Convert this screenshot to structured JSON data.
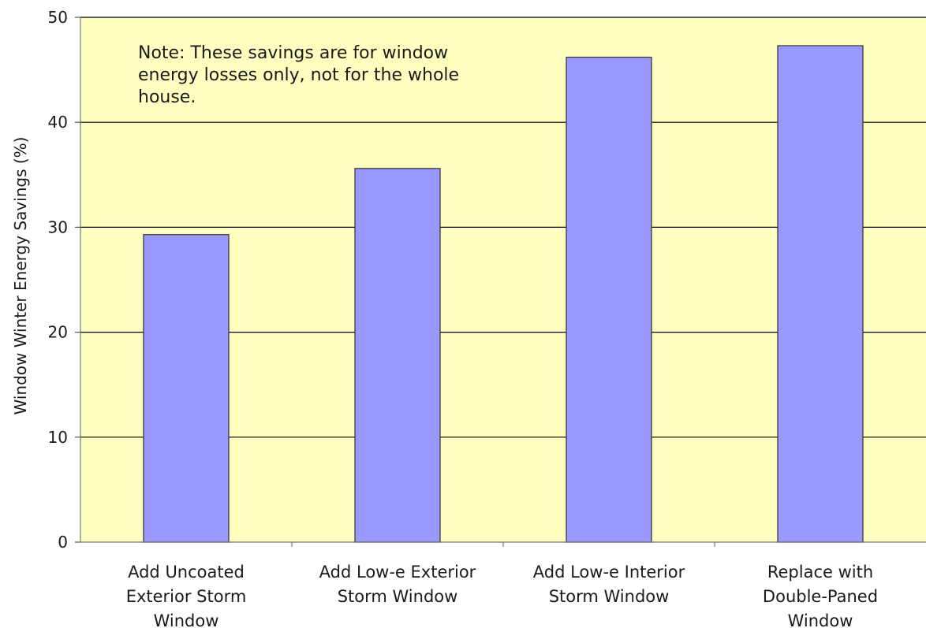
{
  "chart_data": {
    "type": "bar",
    "title": "",
    "xlabel": "",
    "ylabel": "Window Winter Energy Savings (%)",
    "ylim": [
      0,
      50
    ],
    "yticks": [
      0,
      10,
      20,
      30,
      40,
      50
    ],
    "grid": true,
    "categories": [
      [
        "Add Uncoated",
        "Exterior Storm",
        "Window"
      ],
      [
        "Add Low-e Exterior",
        "Storm Window"
      ],
      [
        "Add Low-e Interior",
        "Storm Window"
      ],
      [
        "Replace with",
        "Double-Paned",
        "Window"
      ]
    ],
    "values": [
      29.3,
      35.6,
      46.2,
      47.3
    ],
    "annotation": [
      "Note:  These savings are for window",
      "energy losses only, not for the whole",
      "house."
    ],
    "colors": {
      "plot_background": "#FFFFC0",
      "bar_fill": "#9999FF",
      "bar_stroke": "#3a3a3a",
      "gridline": "#000000"
    }
  }
}
